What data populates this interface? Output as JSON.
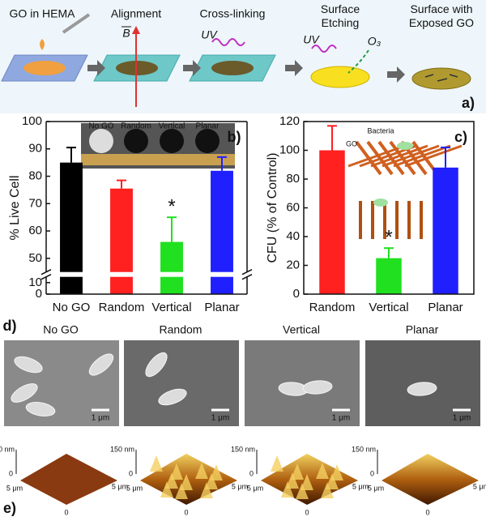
{
  "schematic": {
    "steps": [
      "GO in HEMA",
      "Alignment",
      "Cross-linking",
      "Surface Etching",
      "Surface with Exposed GO"
    ],
    "field": "B",
    "uv": "UV",
    "ozone": "O₃",
    "panel": "a)"
  },
  "chart_data": [
    {
      "type": "bar",
      "panel": "b)",
      "ylabel": "% Live Cell",
      "categories": [
        "No GO",
        "Random",
        "Vertical",
        "Planar"
      ],
      "values": [
        85,
        75.5,
        56,
        82
      ],
      "errors": [
        5.5,
        3,
        9,
        5
      ],
      "colors": [
        "#000000",
        "#ff2020",
        "#20e020",
        "#2020ff"
      ],
      "ylim": [
        0,
        100
      ],
      "ybreak": [
        15,
        45
      ],
      "yticks": [
        0,
        10,
        50,
        60,
        70,
        80,
        90,
        100
      ],
      "annotation": "*",
      "annotation_category": 2,
      "inset_labels": [
        "No GO",
        "Random",
        "Vertical",
        "Planar"
      ]
    },
    {
      "type": "bar",
      "panel": "c)",
      "ylabel": "CFU (% of Control)",
      "categories": [
        "Random",
        "Vertical",
        "Planar"
      ],
      "values": [
        100,
        25,
        88
      ],
      "errors": [
        17,
        7,
        14
      ],
      "colors": [
        "#ff2020",
        "#20e020",
        "#2020ff"
      ],
      "ylim": [
        0,
        120
      ],
      "yticks": [
        0,
        20,
        40,
        60,
        80,
        100,
        120
      ],
      "annotation": "*",
      "annotation_category": 1,
      "inset_labels": [
        "Bacteria",
        "GO"
      ]
    }
  ],
  "sem": {
    "panel": "d)",
    "titles": [
      "No GO",
      "Random",
      "Vertical",
      "Planar"
    ],
    "scale": "1 μm"
  },
  "afm": {
    "panel": "e)",
    "z_top": "150 nm",
    "z_bottom": "0",
    "x": "5 μm",
    "y": "5 μm",
    "origin": "0"
  }
}
